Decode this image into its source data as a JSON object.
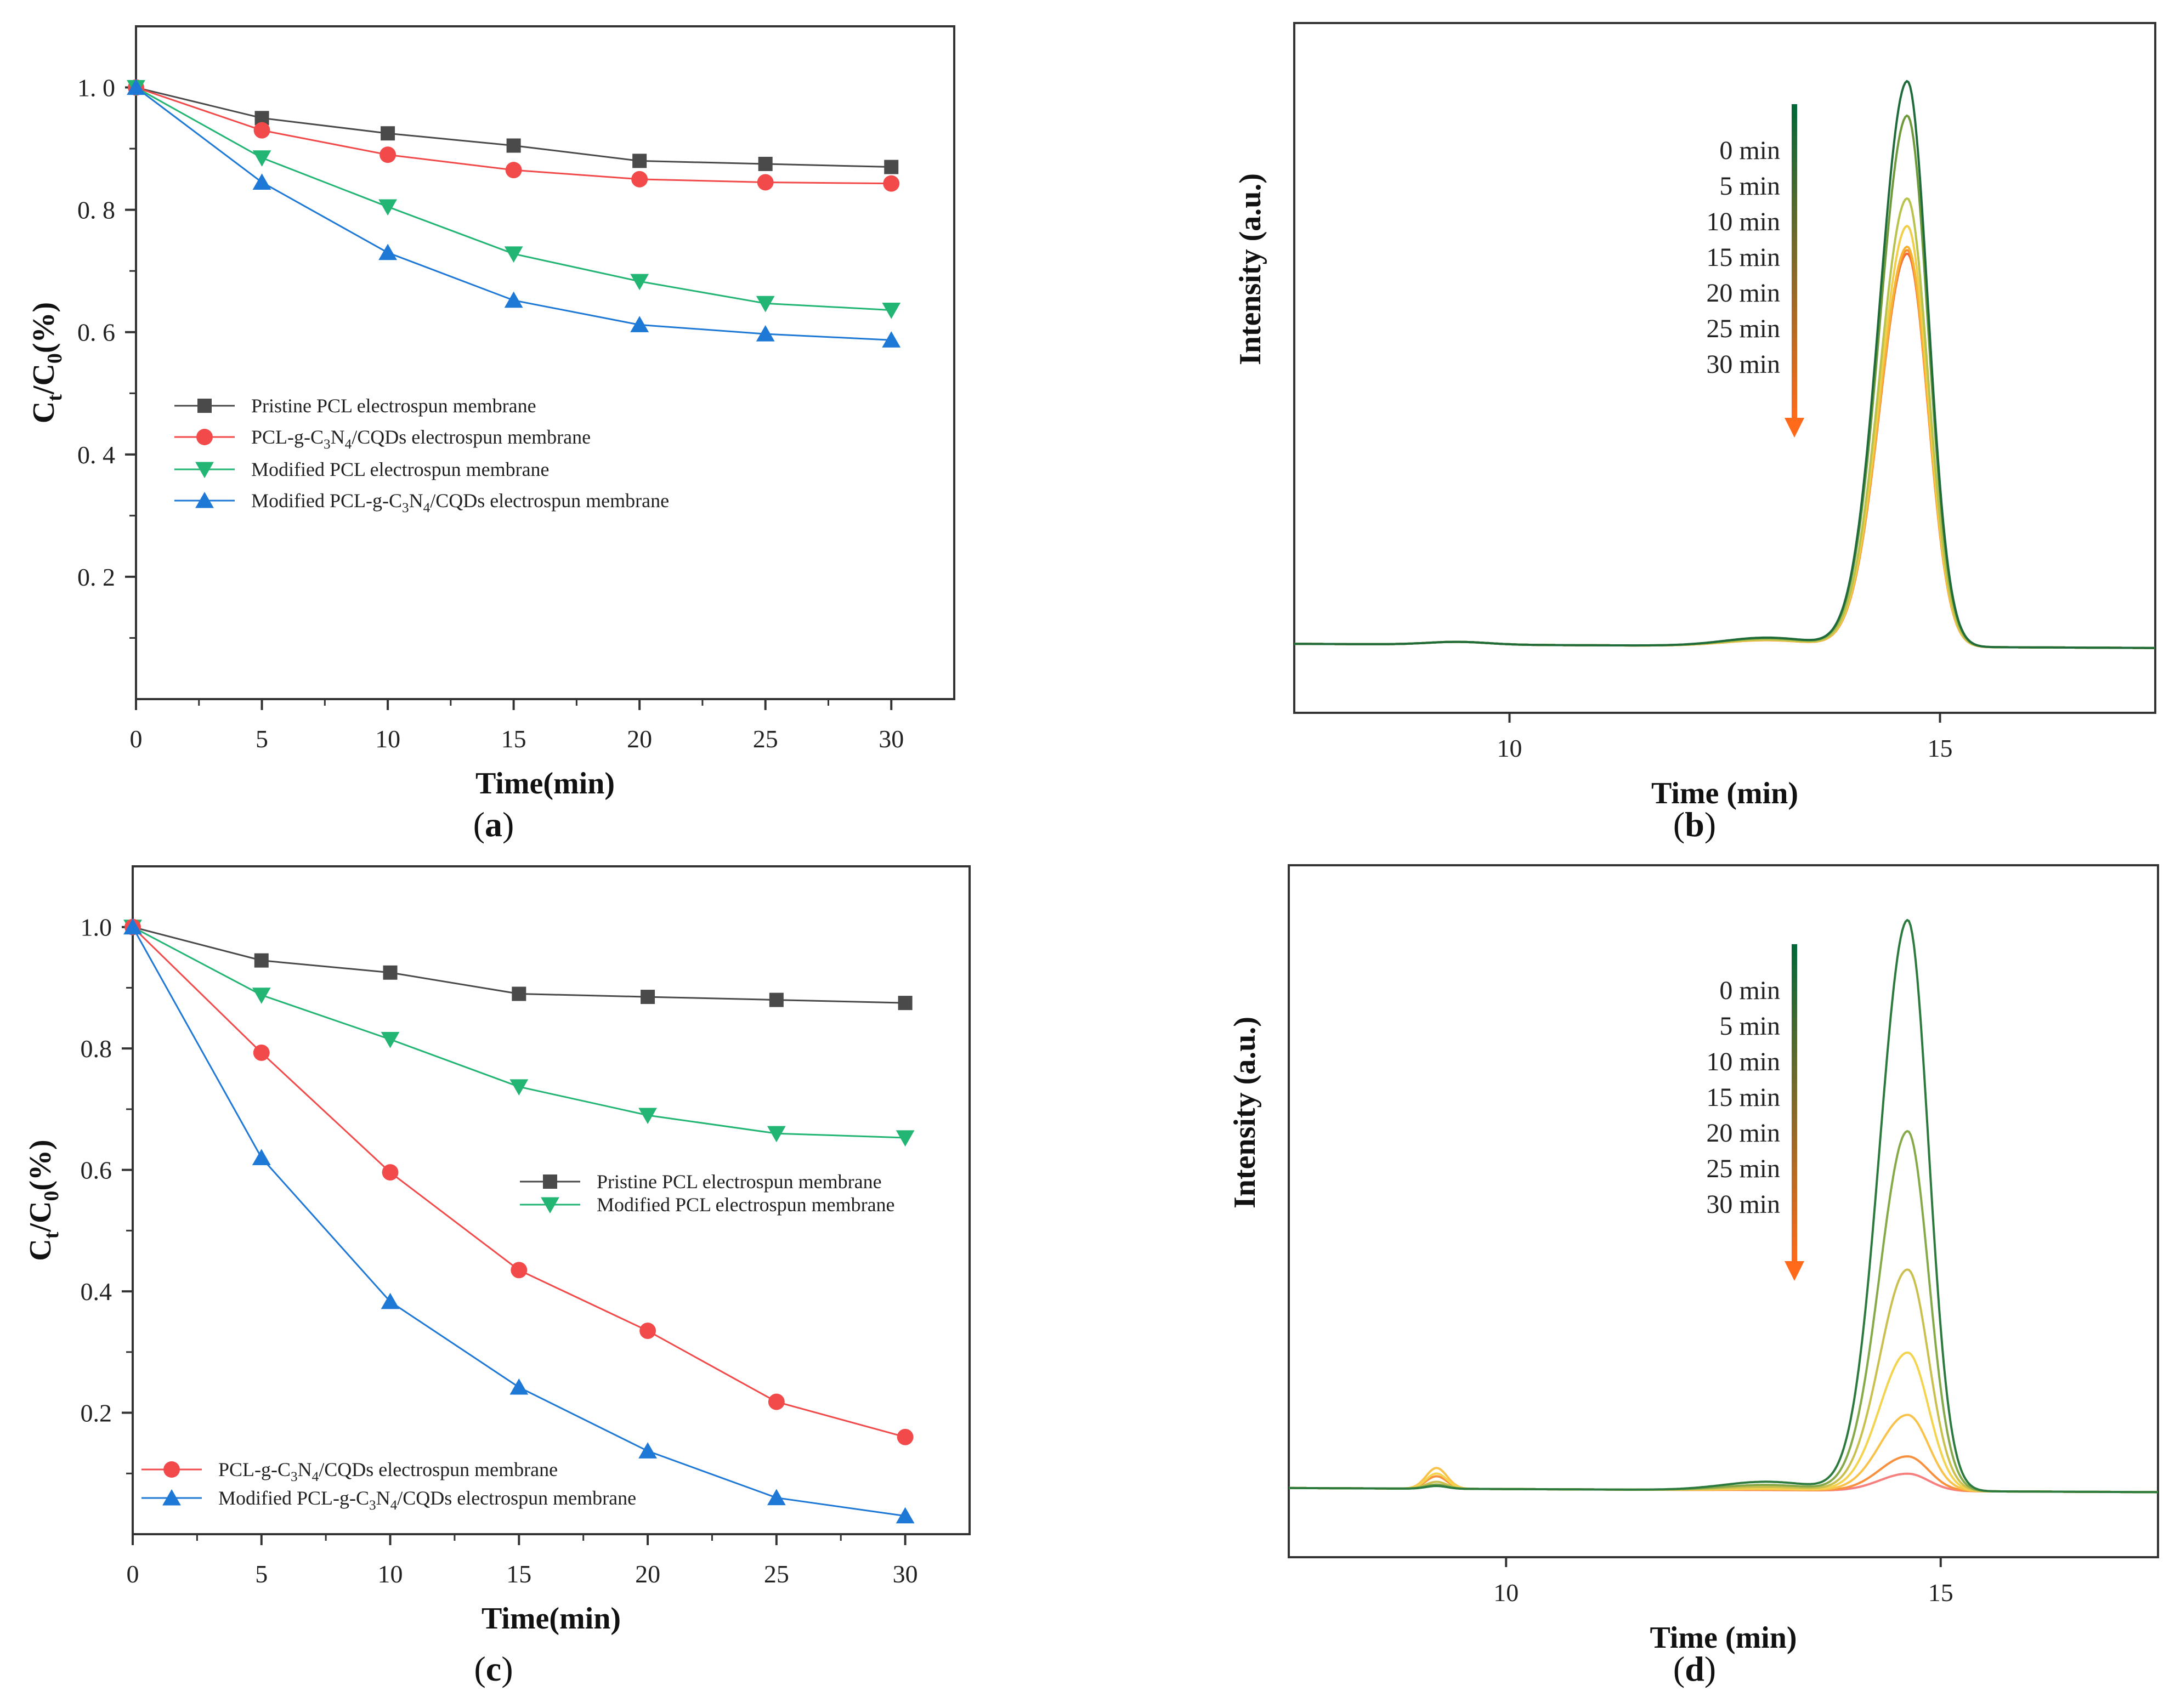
{
  "chart_data": [
    {
      "type": "line",
      "panel": "(a)",
      "panel_label": "a",
      "xlabel": "Time(min)",
      "ylabel_main": "C",
      "ylabel_sub1": "t",
      "ylabel_mid": "/C",
      "ylabel_sub2": "0",
      "ylabel_tail": "(%)",
      "x": [
        0,
        5,
        10,
        15,
        20,
        25,
        30
      ],
      "xlim": [
        0,
        32.5
      ],
      "ylim": [
        0,
        1.1
      ],
      "xticks": [
        0,
        5,
        10,
        15,
        20,
        25,
        30
      ],
      "xtick_labels": [
        "0",
        "5",
        "10",
        "15",
        "20",
        "25",
        "30"
      ],
      "yticks": [
        0.2,
        0.4,
        0.6,
        0.8,
        1.0
      ],
      "ytick_labels": [
        "0. 2",
        "0. 4",
        "0. 6",
        "0. 8",
        "1. 0"
      ],
      "legend_position": "center-left",
      "series": [
        {
          "name": "Pristine PCL electrospun membrane",
          "color": "#4a4a4a",
          "marker": "square",
          "values": [
            1.0,
            0.95,
            0.925,
            0.905,
            0.88,
            0.875,
            0.87
          ]
        },
        {
          "name": "PCL-g-C3N4/CQDs electrospun membrane",
          "color": "#f24a4a",
          "marker": "circle",
          "values": [
            1.0,
            0.93,
            0.89,
            0.865,
            0.85,
            0.845,
            0.843
          ]
        },
        {
          "name": "Modified PCL electrospun membrane",
          "color": "#22b573",
          "marker": "triangle-down",
          "values": [
            1.0,
            0.885,
            0.805,
            0.728,
            0.683,
            0.647,
            0.636
          ]
        },
        {
          "name": "Modified PCL-g-C3N4/CQDs electrospun membrane",
          "color": "#1e78d6",
          "marker": "triangle-up",
          "values": [
            1.0,
            0.845,
            0.73,
            0.652,
            0.612,
            0.597,
            0.587
          ]
        }
      ],
      "legend_labels": [
        [
          "Pristine PCL electrospun membrane"
        ],
        [
          "PCL-g-C",
          "3",
          "N",
          "4",
          "/CQDs electrospun membrane"
        ],
        [
          "Modified PCL electrospun membrane"
        ],
        [
          "Modified PCL-g-C",
          "3",
          "N",
          "4",
          "/CQDs electrospun membrane"
        ]
      ]
    },
    {
      "type": "line",
      "panel": "(b)",
      "panel_label": "b",
      "xlabel": "Time (min)",
      "ylabel": "Intensity (a.u.)",
      "xlim": [
        7.5,
        17.5
      ],
      "ylim": [
        0,
        1.0
      ],
      "xticks": [
        10,
        15
      ],
      "xtick_labels": [
        "10",
        "15"
      ],
      "peak_center_min": 14.62,
      "legend_entries": [
        "0 min",
        "5 min",
        "10 min",
        "15 min",
        "20 min",
        "25 min",
        "30 min"
      ],
      "arrow_colors": [
        "#006837",
        "#ff6a1a"
      ],
      "series": [
        {
          "name": "0 min",
          "color": "#1f6b3a",
          "peak": 0.82
        },
        {
          "name": "5 min",
          "color": "#6f9a3c",
          "peak": 0.77
        },
        {
          "name": "10 min",
          "color": "#b8c24c",
          "peak": 0.65
        },
        {
          "name": "15 min",
          "color": "#f2cf4a",
          "peak": 0.61
        },
        {
          "name": "20 min",
          "color": "#f6b235",
          "peak": 0.58
        },
        {
          "name": "25 min",
          "color": "#f8902d",
          "peak": 0.575
        },
        {
          "name": "30 min",
          "color": "#f56a36",
          "peak": 0.57
        }
      ]
    },
    {
      "type": "line",
      "panel": "(c)",
      "panel_label": "c",
      "xlabel": "Time(min)",
      "ylabel_main": "C",
      "ylabel_sub1": "t",
      "ylabel_mid": "/C",
      "ylabel_sub2": "0",
      "ylabel_tail": "(%)",
      "x": [
        0,
        5,
        10,
        15,
        20,
        25,
        30
      ],
      "xlim": [
        0,
        32.5
      ],
      "ylim": [
        0,
        1.1
      ],
      "xticks": [
        0,
        5,
        10,
        15,
        20,
        25,
        30
      ],
      "xtick_labels": [
        "0",
        "5",
        "10",
        "15",
        "20",
        "25",
        "30"
      ],
      "yticks": [
        0.2,
        0.4,
        0.6,
        0.8,
        1.0
      ],
      "ytick_labels": [
        "0.2",
        "0.4",
        "0.6",
        "0.8",
        "1.0"
      ],
      "legend_position": "split: center-right and bottom-left",
      "series": [
        {
          "name": "Pristine PCL electrospun membrane",
          "color": "#4a4a4a",
          "marker": "square",
          "values": [
            1.0,
            0.945,
            0.925,
            0.89,
            0.885,
            0.88,
            0.875
          ]
        },
        {
          "name": "Modified PCL electrospun membrane",
          "color": "#22b573",
          "marker": "triangle-down",
          "values": [
            1.0,
            0.888,
            0.815,
            0.737,
            0.69,
            0.66,
            0.653
          ]
        },
        {
          "name": "PCL-g-C3N4/CQDs electrospun membrane",
          "color": "#f24a4a",
          "marker": "circle",
          "values": [
            1.0,
            0.793,
            0.596,
            0.435,
            0.335,
            0.218,
            0.16
          ]
        },
        {
          "name": "Modified PCL-g-C3N4/CQDs electrospun membrane",
          "color": "#1e78d6",
          "marker": "triangle-up",
          "values": [
            1.0,
            0.62,
            0.383,
            0.242,
            0.137,
            0.06,
            0.03
          ]
        }
      ],
      "legend_labels": [
        [
          "Pristine PCL electrospun membrane"
        ],
        [
          "Modified PCL electrospun membrane"
        ],
        [
          "PCL-g-C",
          "3",
          "N",
          "4",
          "/CQDs electrospun membrane"
        ],
        [
          "Modified PCL-g-C",
          "3",
          "N",
          "4",
          "/CQDs electrospun membrane"
        ]
      ]
    },
    {
      "type": "line",
      "panel": "(d)",
      "panel_label": "d",
      "xlabel": "Time (min)",
      "ylabel": "Intensity (a.u.)",
      "xlim": [
        7.5,
        17.5
      ],
      "ylim": [
        0,
        1.0
      ],
      "xticks": [
        10,
        15
      ],
      "xtick_labels": [
        "10",
        "15"
      ],
      "peak_center_min": 14.62,
      "minor_peak_center_min": 9.2,
      "legend_entries": [
        "0 min",
        "5 min",
        "10 min",
        "15 min",
        "20 min",
        "25 min",
        "30 min"
      ],
      "arrow_colors": [
        "#006837",
        "#ff6a1a"
      ],
      "series": [
        {
          "name": "0 min",
          "color": "#2d7a3f",
          "peak": 0.825,
          "minor": 0.004
        },
        {
          "name": "5 min",
          "color": "#86a94a",
          "peak": 0.52,
          "minor": 0.006
        },
        {
          "name": "10 min",
          "color": "#c9c04f",
          "peak": 0.32,
          "minor": 0.01
        },
        {
          "name": "15 min",
          "color": "#f4d34e",
          "peak": 0.2,
          "minor": 0.022
        },
        {
          "name": "20 min",
          "color": "#f9c24a",
          "peak": 0.11,
          "minor": 0.03
        },
        {
          "name": "25 min",
          "color": "#f8903d",
          "peak": 0.05,
          "minor": 0.018
        },
        {
          "name": "30 min",
          "color": "#f7807e",
          "peak": 0.025,
          "minor": 0.005
        }
      ]
    }
  ]
}
